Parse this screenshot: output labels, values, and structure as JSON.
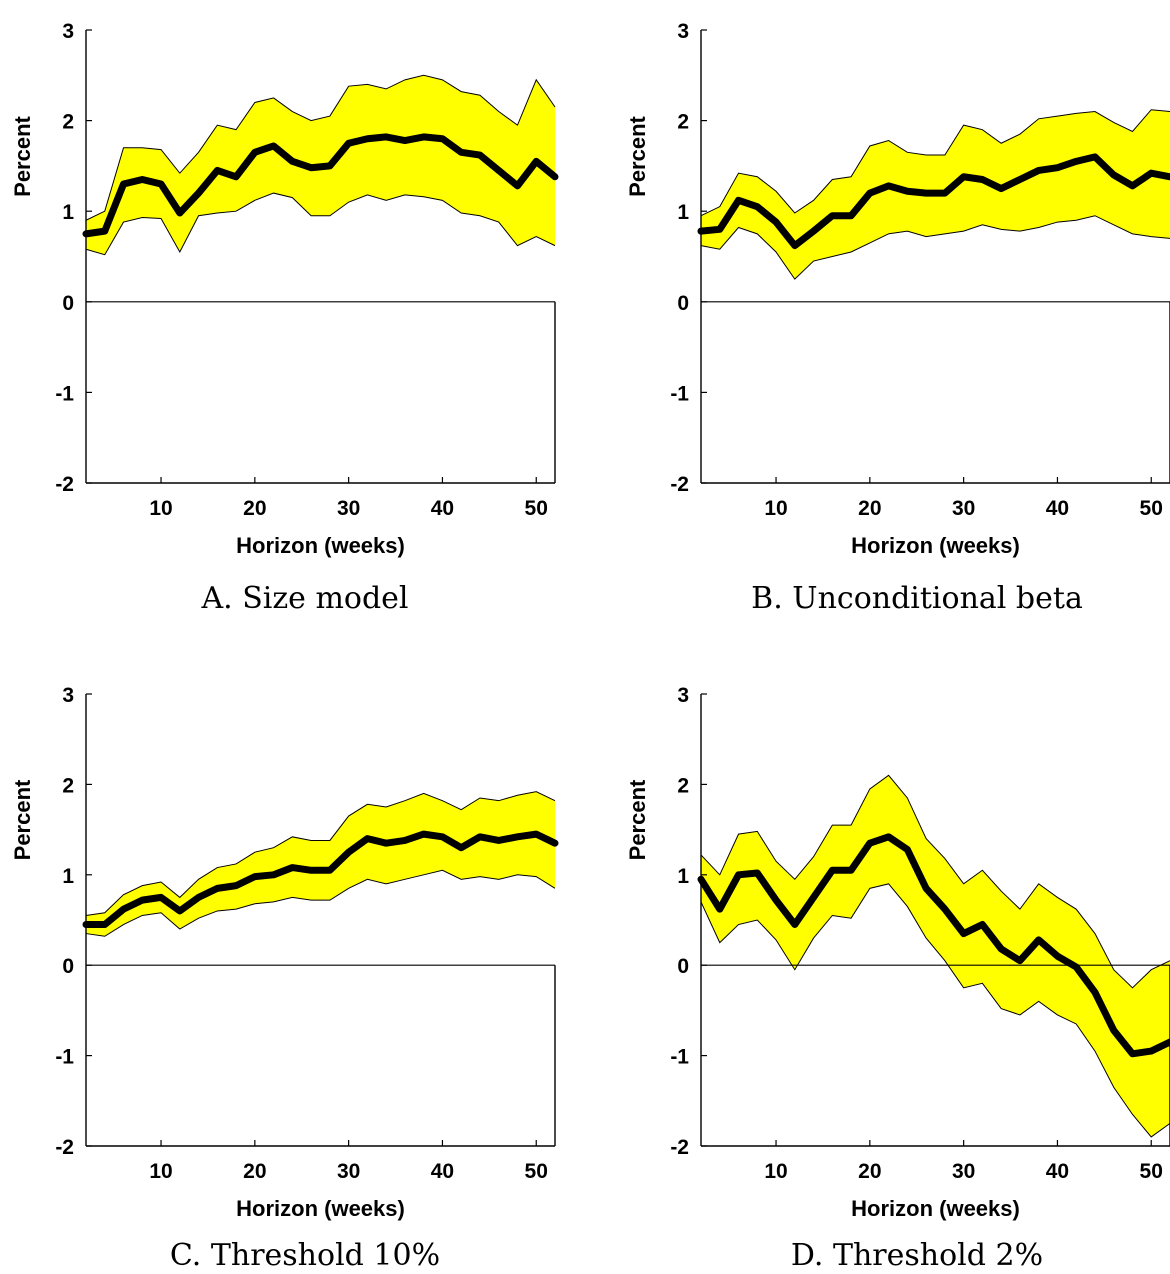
{
  "chart_data": [
    {
      "type": "line",
      "panel_caption": "A. Size model",
      "xlabel": "Horizon (weeks)",
      "ylabel": "Percent",
      "xlim": [
        2,
        52
      ],
      "ylim": [
        -2,
        3
      ],
      "xticks": [
        10,
        20,
        30,
        40,
        50
      ],
      "yticks": [
        -2,
        -1,
        0,
        1,
        2,
        3
      ],
      "grid": false,
      "band_color": "#ffff00",
      "line_color": "#000000",
      "series": [
        {
          "role": "band_lower",
          "x": [
            2,
            4,
            6,
            8,
            10,
            12,
            14,
            16,
            18,
            20,
            22,
            24,
            26,
            28,
            30,
            32,
            34,
            36,
            38,
            40,
            42,
            44,
            46,
            48,
            50,
            52
          ],
          "values": [
            0.58,
            0.52,
            0.88,
            0.93,
            0.92,
            0.55,
            0.95,
            0.98,
            1.0,
            1.12,
            1.2,
            1.15,
            0.95,
            0.95,
            1.1,
            1.18,
            1.12,
            1.18,
            1.16,
            1.12,
            0.98,
            0.95,
            0.88,
            0.62,
            0.72,
            0.62
          ]
        },
        {
          "role": "estimate",
          "x": [
            2,
            4,
            6,
            8,
            10,
            12,
            14,
            16,
            18,
            20,
            22,
            24,
            26,
            28,
            30,
            32,
            34,
            36,
            38,
            40,
            42,
            44,
            46,
            48,
            50,
            52
          ],
          "values": [
            0.75,
            0.78,
            1.3,
            1.35,
            1.3,
            0.98,
            1.2,
            1.45,
            1.38,
            1.65,
            1.72,
            1.55,
            1.48,
            1.5,
            1.75,
            1.8,
            1.82,
            1.78,
            1.82,
            1.8,
            1.65,
            1.62,
            1.45,
            1.28,
            1.55,
            1.38
          ]
        },
        {
          "role": "band_upper",
          "x": [
            2,
            4,
            6,
            8,
            10,
            12,
            14,
            16,
            18,
            20,
            22,
            24,
            26,
            28,
            30,
            32,
            34,
            36,
            38,
            40,
            42,
            44,
            46,
            48,
            50,
            52
          ],
          "values": [
            0.9,
            1.0,
            1.7,
            1.7,
            1.68,
            1.42,
            1.65,
            1.95,
            1.9,
            2.2,
            2.25,
            2.1,
            2.0,
            2.05,
            2.38,
            2.4,
            2.35,
            2.45,
            2.5,
            2.45,
            2.32,
            2.28,
            2.1,
            1.95,
            2.45,
            2.15
          ]
        }
      ]
    },
    {
      "type": "line",
      "panel_caption": "B. Unconditional beta",
      "xlabel": "Horizon (weeks)",
      "ylabel": "Percent",
      "xlim": [
        2,
        52
      ],
      "ylim": [
        -2,
        3
      ],
      "xticks": [
        10,
        20,
        30,
        40,
        50
      ],
      "yticks": [
        -2,
        -1,
        0,
        1,
        2,
        3
      ],
      "grid": false,
      "band_color": "#ffff00",
      "line_color": "#000000",
      "series": [
        {
          "role": "band_lower",
          "x": [
            2,
            4,
            6,
            8,
            10,
            12,
            14,
            16,
            18,
            20,
            22,
            24,
            26,
            28,
            30,
            32,
            34,
            36,
            38,
            40,
            42,
            44,
            46,
            48,
            50,
            52
          ],
          "values": [
            0.62,
            0.58,
            0.82,
            0.75,
            0.55,
            0.25,
            0.45,
            0.5,
            0.55,
            0.65,
            0.75,
            0.78,
            0.72,
            0.75,
            0.78,
            0.85,
            0.8,
            0.78,
            0.82,
            0.88,
            0.9,
            0.95,
            0.85,
            0.75,
            0.72,
            0.7
          ]
        },
        {
          "role": "estimate",
          "x": [
            2,
            4,
            6,
            8,
            10,
            12,
            14,
            16,
            18,
            20,
            22,
            24,
            26,
            28,
            30,
            32,
            34,
            36,
            38,
            40,
            42,
            44,
            46,
            48,
            50,
            52
          ],
          "values": [
            0.78,
            0.8,
            1.12,
            1.05,
            0.88,
            0.62,
            0.78,
            0.95,
            0.95,
            1.2,
            1.28,
            1.22,
            1.2,
            1.2,
            1.38,
            1.35,
            1.25,
            1.35,
            1.45,
            1.48,
            1.55,
            1.6,
            1.4,
            1.28,
            1.42,
            1.38
          ]
        },
        {
          "role": "band_upper",
          "x": [
            2,
            4,
            6,
            8,
            10,
            12,
            14,
            16,
            18,
            20,
            22,
            24,
            26,
            28,
            30,
            32,
            34,
            36,
            38,
            40,
            42,
            44,
            46,
            48,
            50,
            52
          ],
          "values": [
            0.95,
            1.05,
            1.42,
            1.38,
            1.22,
            0.98,
            1.12,
            1.35,
            1.38,
            1.72,
            1.78,
            1.65,
            1.62,
            1.62,
            1.95,
            1.9,
            1.75,
            1.85,
            2.02,
            2.05,
            2.08,
            2.1,
            1.98,
            1.88,
            2.12,
            2.1
          ]
        }
      ]
    },
    {
      "type": "line",
      "panel_caption": "C. Threshold 10%",
      "xlabel": "Horizon (weeks)",
      "ylabel": "Percent",
      "xlim": [
        2,
        52
      ],
      "ylim": [
        -2,
        3
      ],
      "xticks": [
        10,
        20,
        30,
        40,
        50
      ],
      "yticks": [
        -2,
        -1,
        0,
        1,
        2,
        3
      ],
      "grid": false,
      "band_color": "#ffff00",
      "line_color": "#000000",
      "series": [
        {
          "role": "band_lower",
          "x": [
            2,
            4,
            6,
            8,
            10,
            12,
            14,
            16,
            18,
            20,
            22,
            24,
            26,
            28,
            30,
            32,
            34,
            36,
            38,
            40,
            42,
            44,
            46,
            48,
            50,
            52
          ],
          "values": [
            0.35,
            0.32,
            0.45,
            0.55,
            0.58,
            0.4,
            0.52,
            0.6,
            0.62,
            0.68,
            0.7,
            0.75,
            0.72,
            0.72,
            0.85,
            0.95,
            0.9,
            0.95,
            1.0,
            1.05,
            0.95,
            0.98,
            0.95,
            1.0,
            0.98,
            0.85
          ]
        },
        {
          "role": "estimate",
          "x": [
            2,
            4,
            6,
            8,
            10,
            12,
            14,
            16,
            18,
            20,
            22,
            24,
            26,
            28,
            30,
            32,
            34,
            36,
            38,
            40,
            42,
            44,
            46,
            48,
            50,
            52
          ],
          "values": [
            0.45,
            0.45,
            0.62,
            0.72,
            0.75,
            0.6,
            0.75,
            0.85,
            0.88,
            0.98,
            1.0,
            1.08,
            1.05,
            1.05,
            1.25,
            1.4,
            1.35,
            1.38,
            1.45,
            1.42,
            1.3,
            1.42,
            1.38,
            1.42,
            1.45,
            1.35
          ]
        },
        {
          "role": "band_upper",
          "x": [
            2,
            4,
            6,
            8,
            10,
            12,
            14,
            16,
            18,
            20,
            22,
            24,
            26,
            28,
            30,
            32,
            34,
            36,
            38,
            40,
            42,
            44,
            46,
            48,
            50,
            52
          ],
          "values": [
            0.55,
            0.58,
            0.78,
            0.88,
            0.92,
            0.75,
            0.95,
            1.08,
            1.12,
            1.25,
            1.3,
            1.42,
            1.38,
            1.38,
            1.65,
            1.78,
            1.75,
            1.82,
            1.9,
            1.82,
            1.72,
            1.85,
            1.82,
            1.88,
            1.92,
            1.82
          ]
        }
      ]
    },
    {
      "type": "line",
      "panel_caption": "D. Threshold 2%",
      "xlabel": "Horizon (weeks)",
      "ylabel": "Percent",
      "xlim": [
        2,
        52
      ],
      "ylim": [
        -2,
        3
      ],
      "xticks": [
        10,
        20,
        30,
        40,
        50
      ],
      "yticks": [
        -2,
        -1,
        0,
        1,
        2,
        3
      ],
      "grid": false,
      "band_color": "#ffff00",
      "line_color": "#000000",
      "series": [
        {
          "role": "band_lower",
          "x": [
            2,
            4,
            6,
            8,
            10,
            12,
            14,
            16,
            18,
            20,
            22,
            24,
            26,
            28,
            30,
            32,
            34,
            36,
            38,
            40,
            42,
            44,
            46,
            48,
            50,
            52
          ],
          "values": [
            0.7,
            0.25,
            0.45,
            0.5,
            0.28,
            -0.05,
            0.3,
            0.55,
            0.52,
            0.85,
            0.9,
            0.65,
            0.3,
            0.05,
            -0.25,
            -0.2,
            -0.48,
            -0.55,
            -0.4,
            -0.55,
            -0.65,
            -0.95,
            -1.35,
            -1.65,
            -1.9,
            -1.75
          ]
        },
        {
          "role": "estimate",
          "x": [
            2,
            4,
            6,
            8,
            10,
            12,
            14,
            16,
            18,
            20,
            22,
            24,
            26,
            28,
            30,
            32,
            34,
            36,
            38,
            40,
            42,
            44,
            46,
            48,
            50,
            52
          ],
          "values": [
            0.95,
            0.62,
            1.0,
            1.02,
            0.72,
            0.45,
            0.75,
            1.05,
            1.05,
            1.35,
            1.42,
            1.28,
            0.85,
            0.62,
            0.35,
            0.45,
            0.18,
            0.05,
            0.28,
            0.1,
            -0.02,
            -0.3,
            -0.72,
            -0.98,
            -0.95,
            -0.85
          ]
        },
        {
          "role": "band_upper",
          "x": [
            2,
            4,
            6,
            8,
            10,
            12,
            14,
            16,
            18,
            20,
            22,
            24,
            26,
            28,
            30,
            32,
            34,
            36,
            38,
            40,
            42,
            44,
            46,
            48,
            50,
            52
          ],
          "values": [
            1.22,
            1.0,
            1.45,
            1.48,
            1.15,
            0.95,
            1.2,
            1.55,
            1.55,
            1.95,
            2.1,
            1.85,
            1.4,
            1.18,
            0.9,
            1.05,
            0.82,
            0.62,
            0.9,
            0.75,
            0.62,
            0.35,
            -0.05,
            -0.25,
            -0.05,
            0.05
          ]
        }
      ]
    }
  ]
}
